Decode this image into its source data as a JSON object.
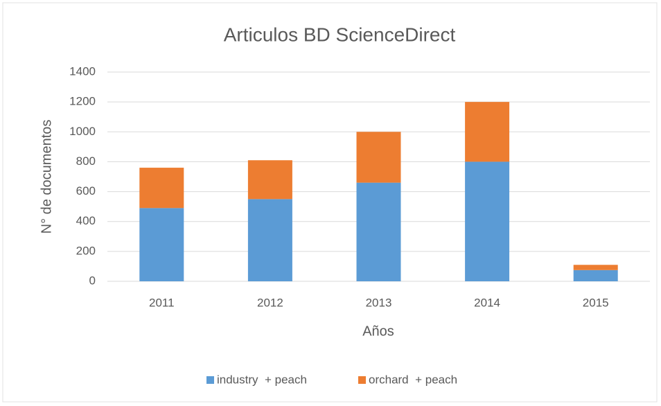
{
  "chart_data": {
    "type": "stacked_bar",
    "title": "Articulos BD ScienceDirect",
    "x_label": "Años",
    "y_label": "N° de documentos",
    "categories": [
      "2011",
      "2012",
      "2013",
      "2014",
      "2015"
    ],
    "series": [
      {
        "name": "industry  + peach",
        "color": "#5b9bd5",
        "values": [
          490,
          550,
          660,
          800,
          75
        ]
      },
      {
        "name": "orchard  + peach",
        "color": "#ed7d31",
        "values": [
          270,
          260,
          340,
          400,
          35
        ]
      }
    ],
    "ylim": [
      0,
      1400
    ],
    "yticks": [
      0,
      200,
      400,
      600,
      800,
      1000,
      1200,
      1400
    ],
    "grid": true,
    "legend": "bottom"
  }
}
